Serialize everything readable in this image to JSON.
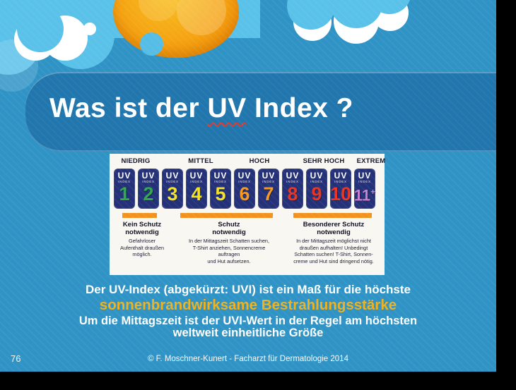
{
  "slide": {
    "title": {
      "pre": "Was ist der ",
      "highlight": "UV",
      "post": " Index ?"
    },
    "page_number": "76",
    "footer_credit": "©  F. Moschner-Kunert - Facharzt für Dermatologie 2014",
    "caption": {
      "line1": "Der UV-Index (abgekürzt: UVI) ist ein Maß für die höchste",
      "line2": "sonnenbrandwirksame Bestrahlungsstärke",
      "line3": "Um die Mittagszeit ist der UVI-Wert in der Regel am höchsten",
      "line4": "weltweit einheitliche Größe"
    },
    "colors": {
      "background": "#2f94c5",
      "title_band": "#2076ad",
      "sky": "#5ac1e9",
      "caption_highlight": "#f0b11b",
      "spellcheck_underline": "#e03a2f"
    }
  },
  "uv_scale": {
    "categories": [
      {
        "label": "NIEDRIG"
      },
      {
        "label": "MITTEL"
      },
      {
        "label": "HOCH"
      },
      {
        "label": "SEHR HOCH"
      },
      {
        "label": "EXTREM"
      }
    ],
    "badge_brand": "UV",
    "badge_sub": "INDEX",
    "badge_background": "#243178",
    "bar_color": "#f2921e",
    "badges": [
      {
        "value": "1",
        "color": "#2fa94b"
      },
      {
        "value": "2",
        "color": "#2fa94b"
      },
      {
        "value": "3",
        "color": "#f3e224"
      },
      {
        "value": "4",
        "color": "#f3e224"
      },
      {
        "value": "5",
        "color": "#f3e224"
      },
      {
        "value": "6",
        "color": "#f6981f"
      },
      {
        "value": "7",
        "color": "#f6981f"
      },
      {
        "value": "8",
        "color": "#ea3423"
      },
      {
        "value": "9",
        "color": "#ea3423"
      },
      {
        "value": "10",
        "color": "#ea3423"
      },
      {
        "value": "11",
        "plus": "+",
        "color": "#c97fca"
      }
    ],
    "advice": [
      {
        "title": "Kein Schutz\nnotwendig",
        "body": "Gefahrloser\nAufenthalt draußen\nmöglich."
      },
      {
        "title": "Schutz\nnotwendig",
        "body": "In der Mittagszeit Schatten suchen,\nT-Shirt anziehen, Sonnencreme\nauftragen\nund Hut aufsetzen."
      },
      {
        "title": "Besonderer Schutz\nnotwendig",
        "body": "In der Mittagszeit möglichst nicht\ndraußen aufhalten! Unbedingt\nSchatten suchen! T-Shirt, Sonnen-\ncreme und Hut sind dringend nötig."
      }
    ]
  },
  "decorations": {
    "icons": [
      "sun-icon",
      "cloud-icon"
    ]
  }
}
